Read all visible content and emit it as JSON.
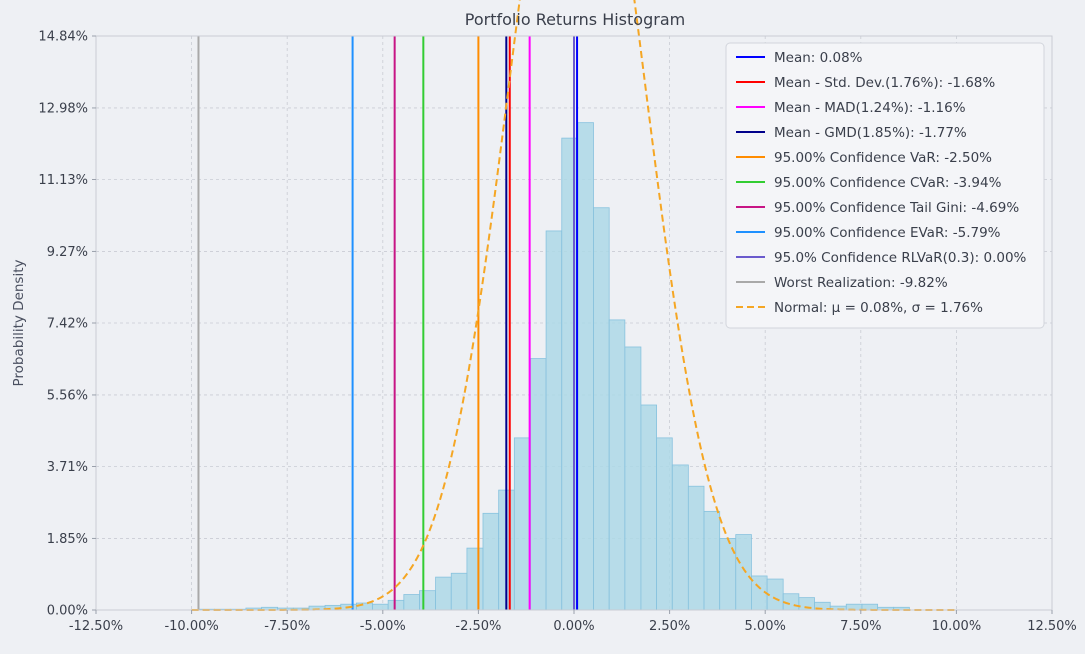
{
  "chart_data": {
    "type": "bar",
    "title": "Portfolio Returns Histogram",
    "xlabel": "",
    "ylabel": "Probability Density",
    "xlim": [
      -12.5,
      12.5
    ],
    "ylim": [
      0,
      14.84
    ],
    "grid": true,
    "legend_position": "top-right",
    "x_ticks": [
      -12.5,
      -10,
      -7.5,
      -5,
      -2.5,
      0,
      2.5,
      5,
      7.5,
      10,
      12.5
    ],
    "x_tick_labels": [
      "-12.50%",
      "-10.00%",
      "-7.50%",
      "-5.00%",
      "-2.50%",
      "0.00%",
      "2.50%",
      "5.00%",
      "7.50%",
      "10.00%",
      "12.50%"
    ],
    "y_ticks": [
      0,
      1.85,
      3.71,
      5.56,
      7.42,
      9.27,
      11.13,
      12.98,
      14.84
    ],
    "y_tick_labels": [
      "0.00%",
      "1.85%",
      "3.71%",
      "5.56%",
      "7.42%",
      "9.27%",
      "11.13%",
      "12.98%",
      "14.84%"
    ],
    "histogram": {
      "bin_edges": [
        -9.82,
        -9.4,
        -8.99,
        -8.58,
        -8.17,
        -7.75,
        -7.34,
        -6.93,
        -6.51,
        -6.1,
        -5.69,
        -5.27,
        -4.86,
        -4.45,
        -4.04,
        -3.62,
        -3.21,
        -2.8,
        -2.38,
        -1.97,
        -1.56,
        -1.14,
        -0.73,
        -0.32,
        0.1,
        0.51,
        0.92,
        1.33,
        1.75,
        2.16,
        2.57,
        2.99,
        3.4,
        3.81,
        4.23,
        4.64,
        5.05,
        5.47,
        5.88,
        6.29,
        6.7,
        7.12,
        7.53,
        7.94,
        8.36,
        8.77
      ],
      "densities": [
        0.02,
        0.02,
        0.02,
        0.05,
        0.07,
        0.05,
        0.05,
        0.1,
        0.12,
        0.15,
        0.18,
        0.15,
        0.25,
        0.4,
        0.5,
        0.85,
        0.95,
        1.6,
        2.5,
        3.1,
        4.45,
        6.5,
        9.8,
        12.2,
        12.6,
        10.4,
        7.5,
        6.8,
        5.3,
        4.45,
        3.75,
        3.2,
        2.55,
        1.85,
        1.95,
        0.88,
        0.8,
        0.42,
        0.32,
        0.2,
        0.1,
        0.15,
        0.15,
        0.07,
        0.07
      ]
    },
    "series": [
      {
        "name": "Mean: 0.08%",
        "type": "vline",
        "x": 0.08,
        "color": "#0000ff"
      },
      {
        "name": "Mean - Std. Dev.(1.76%): -1.68%",
        "type": "vline",
        "x": -1.68,
        "color": "#ff0000"
      },
      {
        "name": "Mean - MAD(1.24%): -1.16%",
        "type": "vline",
        "x": -1.16,
        "color": "#ff00ff"
      },
      {
        "name": "Mean - GMD(1.85%): -1.77%",
        "type": "vline",
        "x": -1.77,
        "color": "#00008b"
      },
      {
        "name": "95.00% Confidence VaR: -2.50%",
        "type": "vline",
        "x": -2.5,
        "color": "#ff8c00"
      },
      {
        "name": "95.00% Confidence CVaR: -3.94%",
        "type": "vline",
        "x": -3.94,
        "color": "#32cd32"
      },
      {
        "name": "95.00% Confidence Tail Gini: -4.69%",
        "type": "vline",
        "x": -4.69,
        "color": "#c71585"
      },
      {
        "name": "95.00% Confidence EVaR: -5.79%",
        "type": "vline",
        "x": -5.79,
        "color": "#1e90ff"
      },
      {
        "name": "95.0% Confidence RLVaR(0.3): 0.00%",
        "type": "vline",
        "x": 0.0,
        "color": "#6a5acd"
      },
      {
        "name": "Worst Realization: -9.82%",
        "type": "vline",
        "x": -9.82,
        "color": "#a9a9a9"
      },
      {
        "name": "Normal: μ = 0.08%, σ = 1.76%",
        "type": "normal_curve",
        "mu": 0.08,
        "sigma": 1.76,
        "color": "#f5a623"
      }
    ],
    "colors": {
      "bar_fill": "#add8e6",
      "bar_edge": "#87c2de",
      "grid": "#c9ccd3",
      "background": "#eef0f4"
    }
  }
}
